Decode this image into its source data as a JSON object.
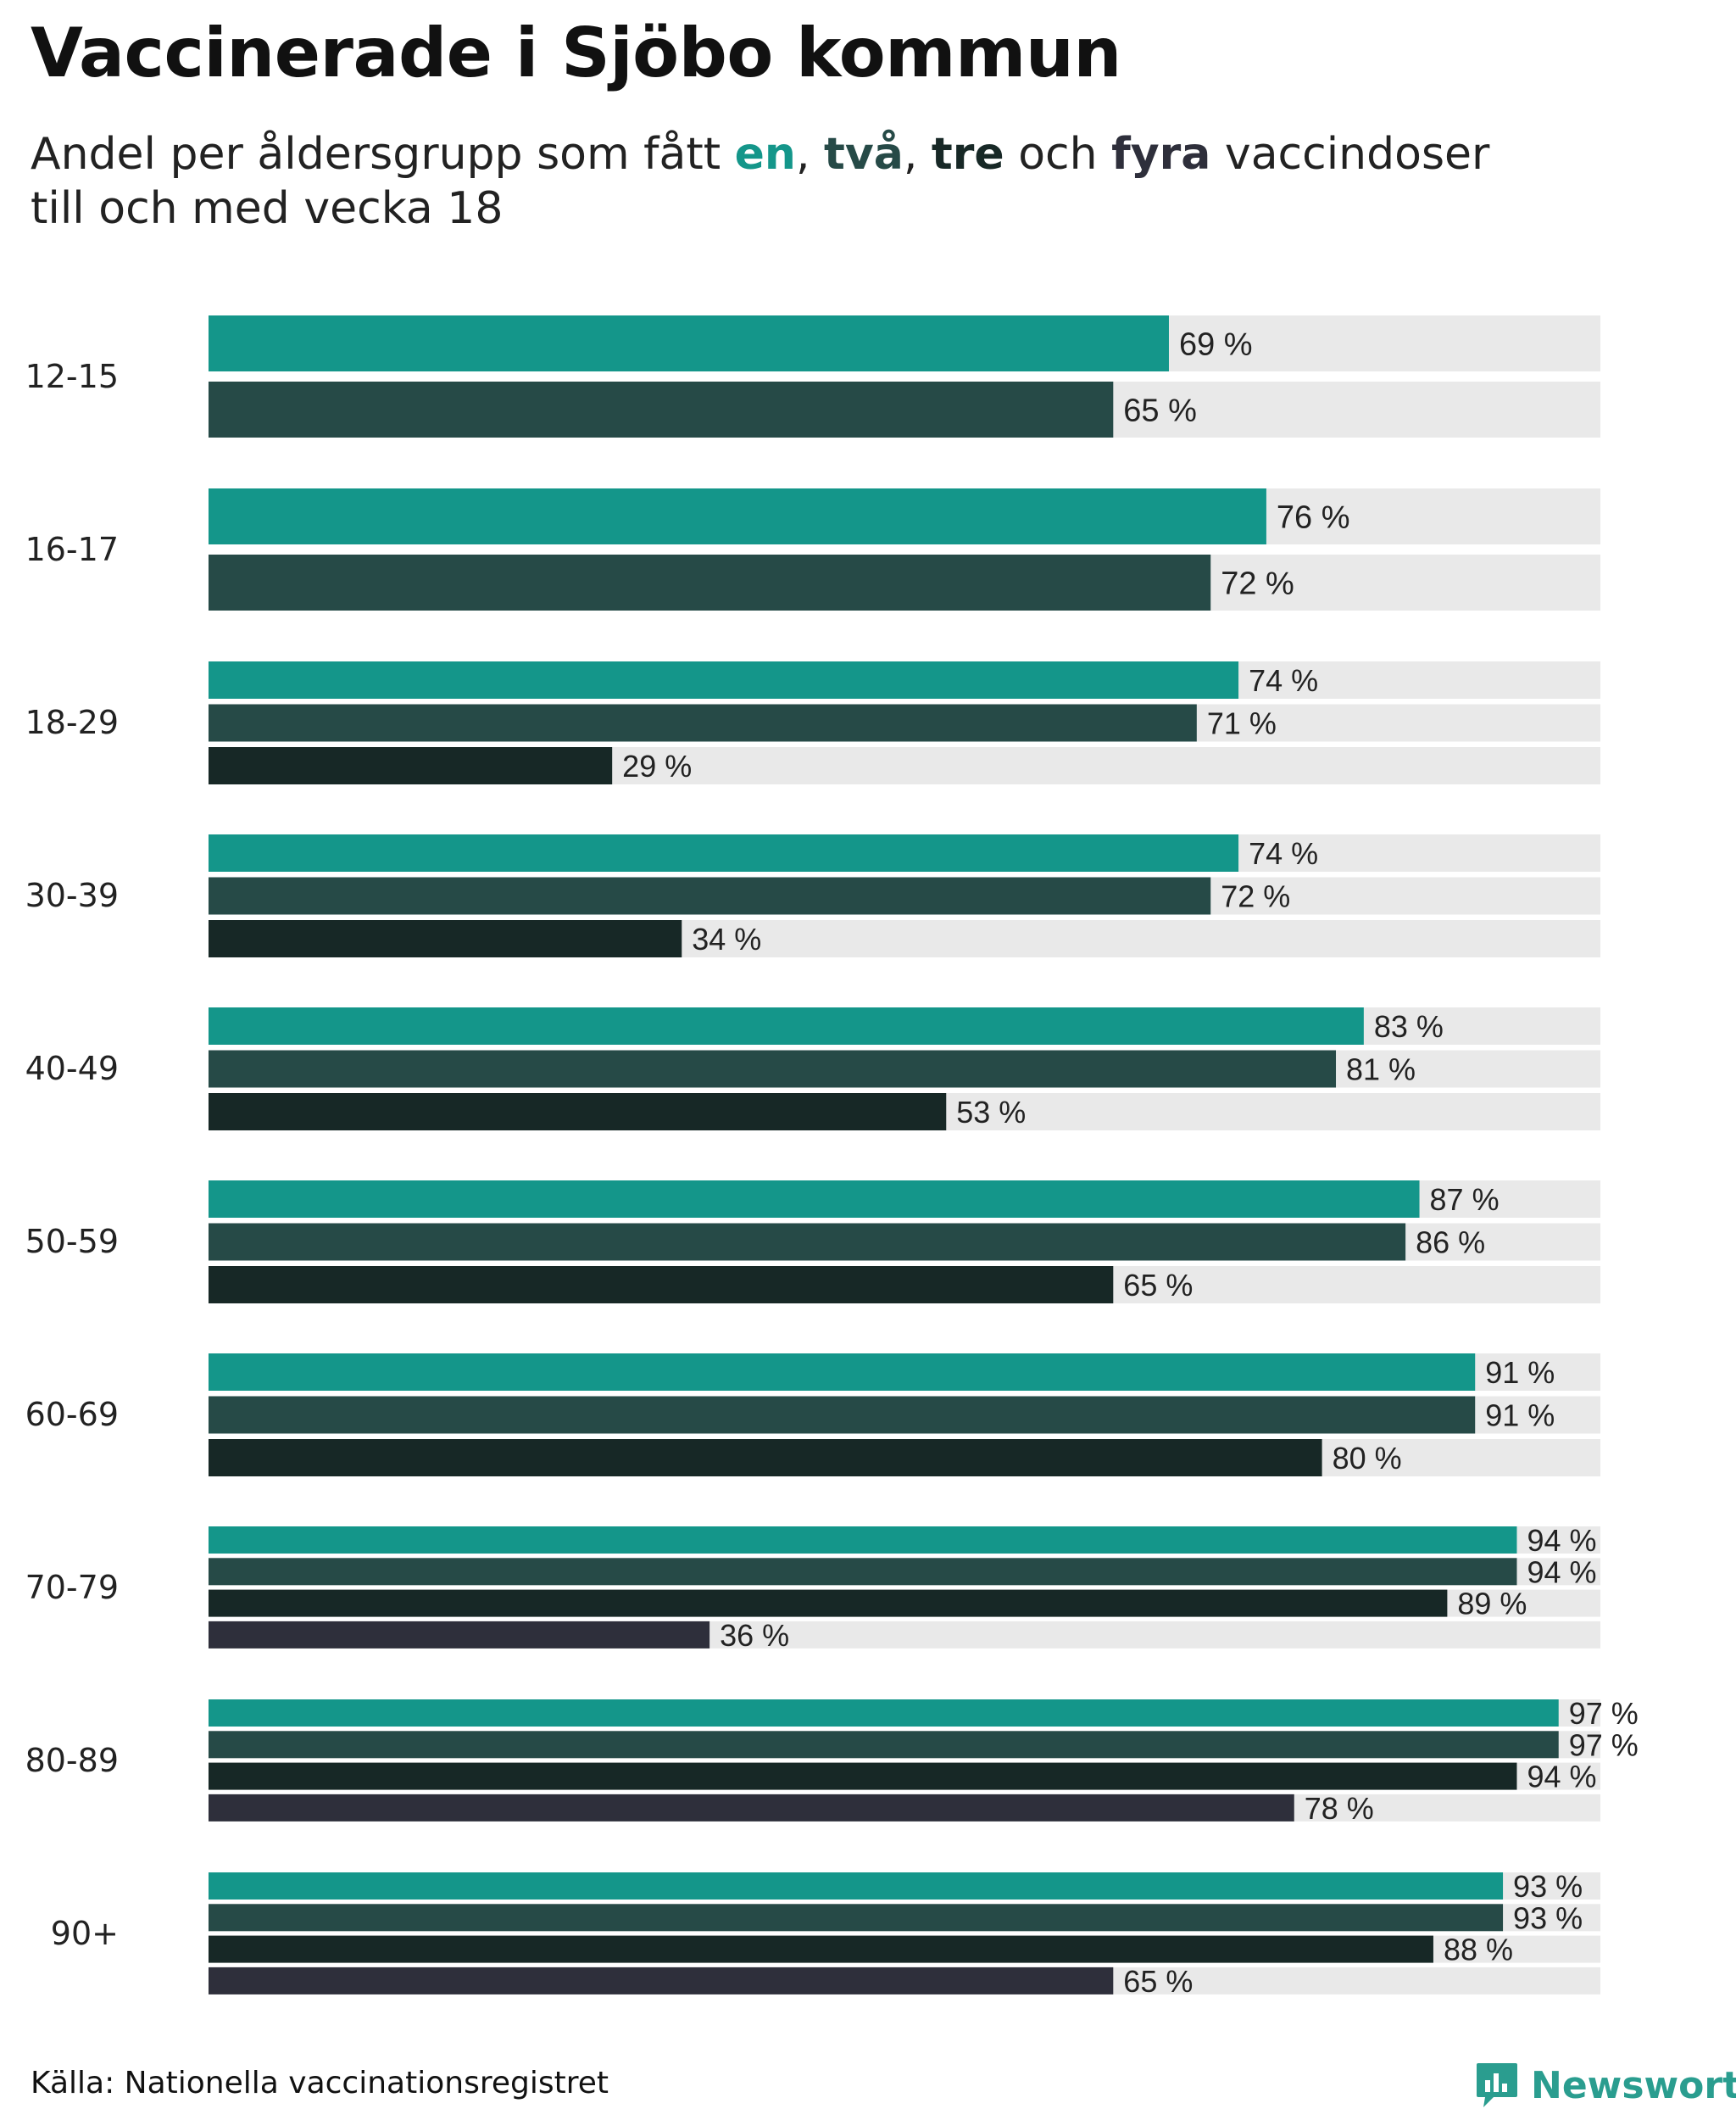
{
  "header": {
    "title": "Vaccinerade i Sjöbo kommun",
    "subtitle_pre": "Andel per åldersgrupp som fått ",
    "k1": "en",
    "sep1": ", ",
    "k2": "två",
    "sep2": ", ",
    "k3": "tre",
    "sep3": " och ",
    "k4": "fyra",
    "subtitle_post1": " vaccindoser",
    "subtitle_line2": "till och med vecka 18"
  },
  "footer": {
    "source": "Källa: Nationella vaccinationsregistret",
    "brand": "Newsworthy"
  },
  "colors": {
    "en": "#14968a",
    "tva": "#264a47",
    "tre": "#172826",
    "fyra": "#2e2f3b",
    "track": "#e9e9e9",
    "brand": "#2a9d8f"
  },
  "chart_data": {
    "type": "bar",
    "orientation": "horizontal",
    "xlim": [
      0,
      100
    ],
    "value_suffix": " %",
    "series": [
      {
        "name": "en"
      },
      {
        "name": "två"
      },
      {
        "name": "tre"
      },
      {
        "name": "fyra"
      }
    ],
    "categories": [
      {
        "label": "12-15",
        "values": [
          69,
          65
        ]
      },
      {
        "label": "16-17",
        "values": [
          76,
          72
        ]
      },
      {
        "label": "18-29",
        "values": [
          74,
          71,
          29
        ]
      },
      {
        "label": "30-39",
        "values": [
          74,
          72,
          34
        ]
      },
      {
        "label": "40-49",
        "values": [
          83,
          81,
          53
        ]
      },
      {
        "label": "50-59",
        "values": [
          87,
          86,
          65
        ]
      },
      {
        "label": "60-69",
        "values": [
          91,
          91,
          80
        ]
      },
      {
        "label": "70-79",
        "values": [
          94,
          94,
          89,
          36
        ]
      },
      {
        "label": "80-89",
        "values": [
          97,
          97,
          94,
          78
        ]
      },
      {
        "label": "90+",
        "values": [
          93,
          93,
          88,
          65
        ]
      }
    ]
  }
}
